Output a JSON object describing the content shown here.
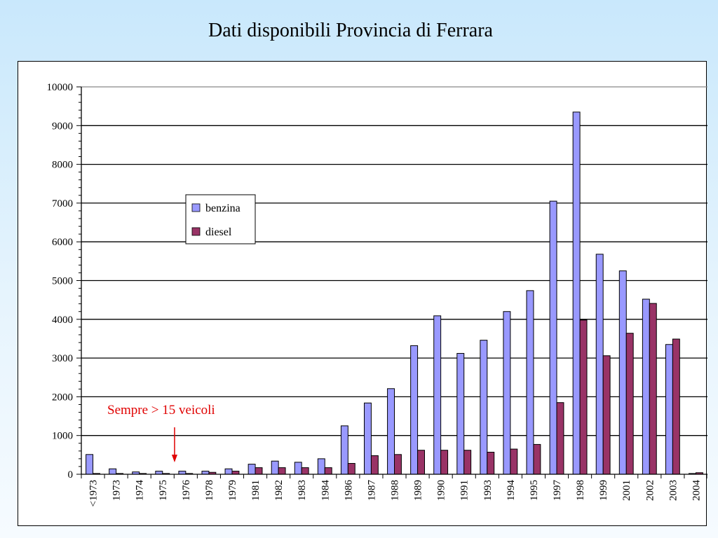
{
  "title": "Dati disponibili Provincia di Ferrara",
  "colors": {
    "benzina": "#9999ff",
    "diesel": "#993366",
    "annotation": "#e00000",
    "gridline": "#000000"
  },
  "chart_data": {
    "type": "bar",
    "categories": [
      "<1973",
      "1973",
      "1974",
      "1975",
      "1976",
      "1978",
      "1979",
      "1981",
      "1982",
      "1983",
      "1984",
      "1986",
      "1987",
      "1988",
      "1989",
      "1990",
      "1991",
      "1993",
      "1994",
      "1995",
      "1997",
      "1998",
      "1999",
      "2001",
      "2002",
      "2003",
      "2004"
    ],
    "series": [
      {
        "name": "benzina",
        "values": [
          510,
          140,
          60,
          80,
          80,
          80,
          140,
          260,
          340,
          310,
          400,
          1250,
          1840,
          2210,
          3320,
          4090,
          3120,
          3460,
          4200,
          4740,
          7050,
          9350,
          5680,
          5250,
          4520,
          3350,
          20
        ]
      },
      {
        "name": "diesel",
        "values": [
          20,
          20,
          20,
          20,
          20,
          50,
          80,
          170,
          170,
          170,
          170,
          280,
          480,
          510,
          620,
          620,
          620,
          570,
          650,
          770,
          1850,
          3980,
          3060,
          3640,
          4410,
          3490,
          40
        ]
      }
    ],
    "ylim": [
      0,
      10000
    ],
    "yticks": [
      0,
      1000,
      2000,
      3000,
      4000,
      5000,
      6000,
      7000,
      8000,
      9000,
      10000
    ],
    "grid": true,
    "legend_position": "upper-left",
    "annotation": {
      "text": "Sempre >  15 veicoli",
      "points_to_category": "1976"
    }
  }
}
